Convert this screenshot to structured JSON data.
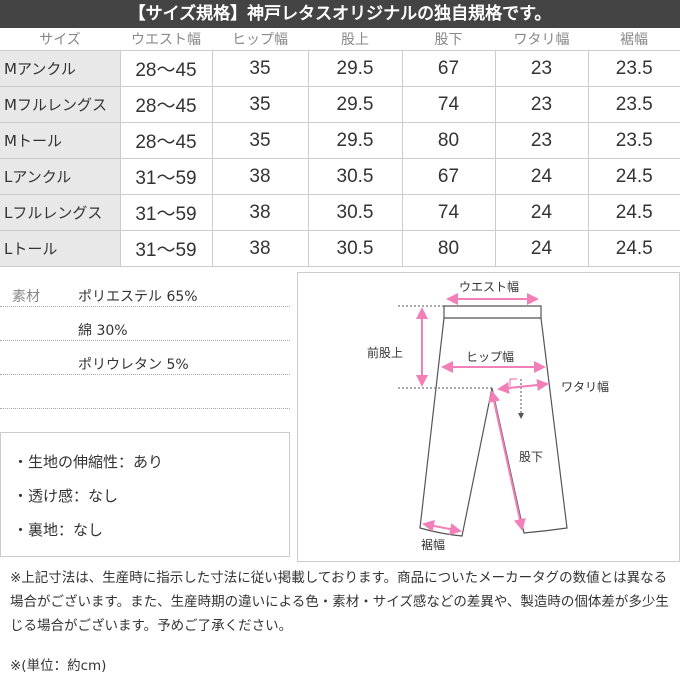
{
  "banner": "【サイズ規格】神戸レタスオリジナルの独自規格です。",
  "table": {
    "headers": [
      "サイズ",
      "ウエスト幅",
      "ヒップ幅",
      "股上",
      "股下",
      "ワタリ幅",
      "裾幅"
    ],
    "rows": [
      [
        "Mアンクル",
        "28〜45",
        "35",
        "29.5",
        "67",
        "23",
        "23.5"
      ],
      [
        "Mフルレングス",
        "28〜45",
        "35",
        "29.5",
        "74",
        "23",
        "23.5"
      ],
      [
        "Mトール",
        "28〜45",
        "35",
        "29.5",
        "80",
        "23",
        "23.5"
      ],
      [
        "Lアンクル",
        "31〜59",
        "38",
        "30.5",
        "67",
        "24",
        "24.5"
      ],
      [
        "Lフルレングス",
        "31〜59",
        "38",
        "30.5",
        "74",
        "24",
        "24.5"
      ],
      [
        "Lトール",
        "31〜59",
        "38",
        "30.5",
        "80",
        "24",
        "24.5"
      ]
    ]
  },
  "materials": {
    "label": "素材",
    "items": [
      "ポリエステル 65%",
      "綿 30%",
      "ポリウレタン 5%"
    ]
  },
  "features": [
    "・生地の伸縮性：あり",
    "・透け感：なし",
    "・裏地：なし"
  ],
  "diagram": {
    "waist": "ウエスト幅",
    "rise": "前股上",
    "hip": "ヒップ幅",
    "thigh": "ワタリ幅",
    "inseam": "股下",
    "hem": "裾幅",
    "accent": "#f27fb8"
  },
  "note": "※上記寸法は、生産時に指示した寸法に従い掲載しております。商品についたメーカータグの数値とは異なる場合がございます。また、生産時期の違いによる色・素材・サイズ感などの差異や、製造時の個体差が多少生じる場合がございます。予めご了承ください。",
  "unit": "※(単位：約cm)"
}
